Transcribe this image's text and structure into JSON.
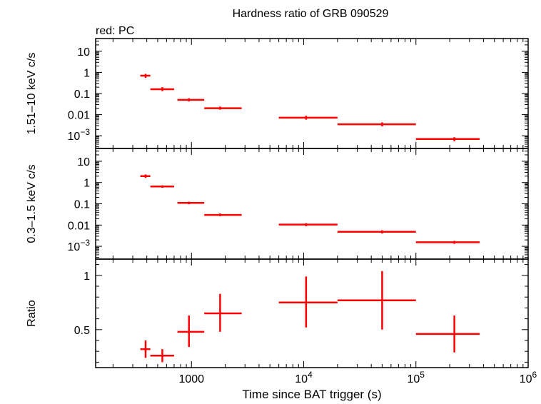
{
  "title": "Hardness ratio of GRB 090529",
  "subtitle": "red: PC",
  "colors": {
    "data": "#ff0000",
    "axes": "#000000"
  },
  "chart_data": {
    "type": "scatter",
    "x_scale": "log",
    "xlabel": "Time since BAT trigger (s)",
    "xlim": [
      140,
      1000000
    ],
    "x_ticks": [
      {
        "v": 1000,
        "label": "1000"
      },
      {
        "v": 10000,
        "base": "10",
        "exp": "4"
      },
      {
        "v": 100000,
        "base": "10",
        "exp": "5"
      },
      {
        "v": 1000000,
        "base": "10",
        "exp": "6"
      }
    ],
    "panels": [
      {
        "ylabel": "1.51–10 keV c/s",
        "y_scale": "log",
        "ylim": [
          0.00025,
          40
        ],
        "y_ticks": [
          {
            "v": 10,
            "label": "10"
          },
          {
            "v": 1,
            "label": "1"
          },
          {
            "v": 0.1,
            "label": "0.1"
          },
          {
            "v": 0.01,
            "label": "0.01"
          },
          {
            "v": 0.001,
            "base": "10",
            "exp": "−3"
          }
        ],
        "points": [
          {
            "x": 390,
            "xlo": 350,
            "xhi": 430,
            "y": 0.7,
            "ylo": 0.55,
            "yhi": 0.85
          },
          {
            "x": 550,
            "xlo": 430,
            "xhi": 700,
            "y": 0.16,
            "ylo": 0.13,
            "yhi": 0.2
          },
          {
            "x": 950,
            "xlo": 750,
            "xhi": 1300,
            "y": 0.05,
            "ylo": 0.042,
            "yhi": 0.06
          },
          {
            "x": 1800,
            "xlo": 1300,
            "xhi": 2800,
            "y": 0.02,
            "ylo": 0.017,
            "yhi": 0.024
          },
          {
            "x": 10500,
            "xlo": 6000,
            "xhi": 20000,
            "y": 0.0072,
            "ylo": 0.0058,
            "yhi": 0.0088
          },
          {
            "x": 50000,
            "xlo": 20000,
            "xhi": 100000,
            "y": 0.0035,
            "ylo": 0.0028,
            "yhi": 0.0043
          },
          {
            "x": 220000,
            "xlo": 100000,
            "xhi": 370000,
            "y": 0.0007,
            "ylo": 0.00055,
            "yhi": 0.00085
          }
        ]
      },
      {
        "ylabel": "0.3–1.5 keV c/s",
        "y_scale": "log",
        "ylim": [
          0.00025,
          40
        ],
        "y_ticks": [
          {
            "v": 10,
            "label": "10"
          },
          {
            "v": 1,
            "label": "1"
          },
          {
            "v": 0.1,
            "label": "0.1"
          },
          {
            "v": 0.01,
            "label": "0.01"
          },
          {
            "v": 0.001,
            "base": "10",
            "exp": "−3"
          }
        ],
        "points": [
          {
            "x": 390,
            "xlo": 350,
            "xhi": 430,
            "y": 2.0,
            "ylo": 1.65,
            "yhi": 2.4
          },
          {
            "x": 550,
            "xlo": 430,
            "xhi": 700,
            "y": 0.65,
            "ylo": 0.57,
            "yhi": 0.74
          },
          {
            "x": 950,
            "xlo": 750,
            "xhi": 1300,
            "y": 0.11,
            "ylo": 0.095,
            "yhi": 0.125
          },
          {
            "x": 1800,
            "xlo": 1300,
            "xhi": 2800,
            "y": 0.03,
            "ylo": 0.026,
            "yhi": 0.035
          },
          {
            "x": 10500,
            "xlo": 6000,
            "xhi": 20000,
            "y": 0.0105,
            "ylo": 0.0088,
            "yhi": 0.0122
          },
          {
            "x": 50000,
            "xlo": 20000,
            "xhi": 100000,
            "y": 0.0048,
            "ylo": 0.004,
            "yhi": 0.0057
          },
          {
            "x": 220000,
            "xlo": 100000,
            "xhi": 370000,
            "y": 0.00155,
            "ylo": 0.0013,
            "yhi": 0.0018
          }
        ]
      },
      {
        "ylabel": "Ratio",
        "y_scale": "linear",
        "ylim": [
          0.15,
          1.15
        ],
        "y_ticks": [
          {
            "v": 1,
            "label": "1"
          },
          {
            "v": 0.5,
            "label": "0.5"
          }
        ],
        "points": [
          {
            "x": 390,
            "xlo": 350,
            "xhi": 430,
            "y": 0.32,
            "ylo": 0.24,
            "yhi": 0.4
          },
          {
            "x": 550,
            "xlo": 430,
            "xhi": 700,
            "y": 0.26,
            "ylo": 0.2,
            "yhi": 0.32
          },
          {
            "x": 950,
            "xlo": 750,
            "xhi": 1300,
            "y": 0.48,
            "ylo": 0.34,
            "yhi": 0.63
          },
          {
            "x": 1800,
            "xlo": 1300,
            "xhi": 2800,
            "y": 0.65,
            "ylo": 0.48,
            "yhi": 0.83
          },
          {
            "x": 10500,
            "xlo": 6000,
            "xhi": 20000,
            "y": 0.75,
            "ylo": 0.52,
            "yhi": 0.99
          },
          {
            "x": 50000,
            "xlo": 20000,
            "xhi": 100000,
            "y": 0.77,
            "ylo": 0.5,
            "yhi": 1.04
          },
          {
            "x": 220000,
            "xlo": 100000,
            "xhi": 370000,
            "y": 0.46,
            "ylo": 0.29,
            "yhi": 0.63
          }
        ]
      }
    ]
  }
}
